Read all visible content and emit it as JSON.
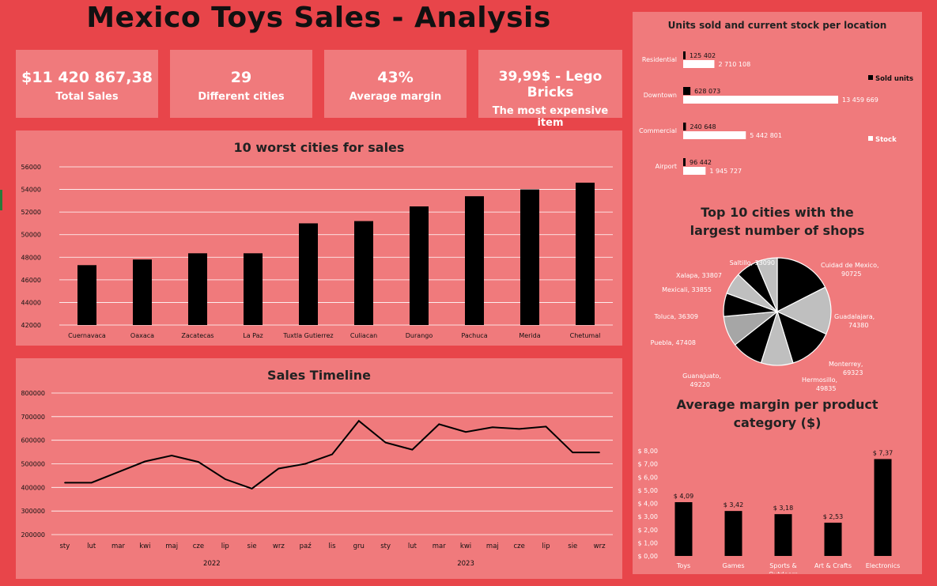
{
  "title": "Mexico Toys Sales  - Analysis",
  "kpis": [
    {
      "value": "$11 420 867,38",
      "label": "Total Sales"
    },
    {
      "value": "29",
      "label": "Different cities"
    },
    {
      "value": "43%",
      "label": "Average margin"
    },
    {
      "value": "39,99$ - Lego Bricks",
      "label": "The most expensive item"
    }
  ],
  "colors": {
    "background": "#E8454A",
    "panel": "#F07A7C",
    "bar": "#000000",
    "stock": "#FFFFFF"
  },
  "chart_data": [
    {
      "id": "worst",
      "type": "bar",
      "title": "10 worst cities for sales",
      "categories": [
        "Cuernavaca",
        "Oaxaca",
        "Zacatecas",
        "La Paz",
        "Tuxtla Gutierrez",
        "Culiacan",
        "Durango",
        "Pachuca",
        "Merida",
        "Chetumal"
      ],
      "values": [
        47300,
        47800,
        48350,
        48350,
        51000,
        51200,
        52500,
        53400,
        54000,
        54600
      ],
      "ylim": [
        42000,
        56000
      ],
      "yticks": [
        "42000",
        "44000",
        "46000",
        "48000",
        "50000",
        "52000",
        "54000",
        "56000"
      ],
      "grid": true
    },
    {
      "id": "timeline",
      "type": "line",
      "title": "Sales Timeline",
      "months": [
        "sty",
        "lut",
        "mar",
        "kwi",
        "maj",
        "cze",
        "lip",
        "sie",
        "wrz",
        "paź",
        "lis",
        "gru",
        "sty",
        "lut",
        "mar",
        "kwi",
        "maj",
        "cze",
        "lip",
        "sie",
        "wrz"
      ],
      "years": [
        "2022",
        "2023"
      ],
      "values": [
        420000,
        420000,
        465000,
        510000,
        535000,
        508000,
        435000,
        395000,
        480000,
        500000,
        540000,
        682000,
        590000,
        560000,
        668000,
        635000,
        655000,
        648000,
        658000,
        548000,
        548000
      ],
      "ylim": [
        200000,
        800000
      ],
      "yticks": [
        "200000",
        "300000",
        "400000",
        "500000",
        "600000",
        "700000",
        "800000"
      ],
      "grid": true
    },
    {
      "id": "units",
      "type": "bar",
      "orientation": "horizontal",
      "title": "Units sold and current stock per location",
      "categories": [
        "Residential",
        "Downtown",
        "Commercial",
        "Airport"
      ],
      "series": [
        {
          "name": "Sold units",
          "values": [
            125402,
            628073,
            240648,
            96442
          ],
          "labels": [
            "125 402",
            "628 073",
            "240 648",
            "96 442"
          ]
        },
        {
          "name": "Stock",
          "values": [
            2710108,
            13459669,
            5442801,
            1945727
          ],
          "labels": [
            "2 710 108",
            "13 459 669",
            "5 442 801",
            "1 945 727"
          ]
        }
      ],
      "legend": "right"
    },
    {
      "id": "shops",
      "type": "pie",
      "title": "Top 10 cities with the largest number of shops",
      "labels": [
        "Cuidad de Mexico, 90725",
        "Guadalajara, 74380",
        "Monterrey, 69323",
        "Hermosillo, 49835",
        "Guanajuato, 49220",
        "Puebla, 47408",
        "Toluca, 36309",
        "Mexicali, 33855",
        "Xalapa, 33807",
        "Saltillo, 33090"
      ],
      "values": [
        90725,
        74380,
        69323,
        49835,
        49220,
        47408,
        36309,
        33855,
        33807,
        33090
      ],
      "colors": [
        "#000000",
        "#BFBFBF",
        "#000000",
        "#BFBFBF",
        "#000000",
        "#A6A6A6",
        "#000000",
        "#BFBFBF",
        "#000000",
        "#BFBFBF"
      ]
    },
    {
      "id": "margin",
      "type": "bar",
      "title": "Average margin per product category ($)",
      "categories": [
        "Toys",
        "Games",
        "Sports & Outdoors",
        "Art & Crafts",
        "Electronics"
      ],
      "values": [
        4.09,
        3.42,
        3.18,
        2.53,
        7.37
      ],
      "value_labels": [
        "$ 4,09",
        "$ 3,42",
        "$ 3,18",
        "$ 2,53",
        "$ 7,37"
      ],
      "ylim": [
        0,
        8
      ],
      "yticks": [
        "$ 0,00",
        "$ 1,00",
        "$ 2,00",
        "$ 3,00",
        "$ 4,00",
        "$ 5,00",
        "$ 6,00",
        "$ 7,00",
        "$ 8,00"
      ],
      "grid": false
    }
  ]
}
